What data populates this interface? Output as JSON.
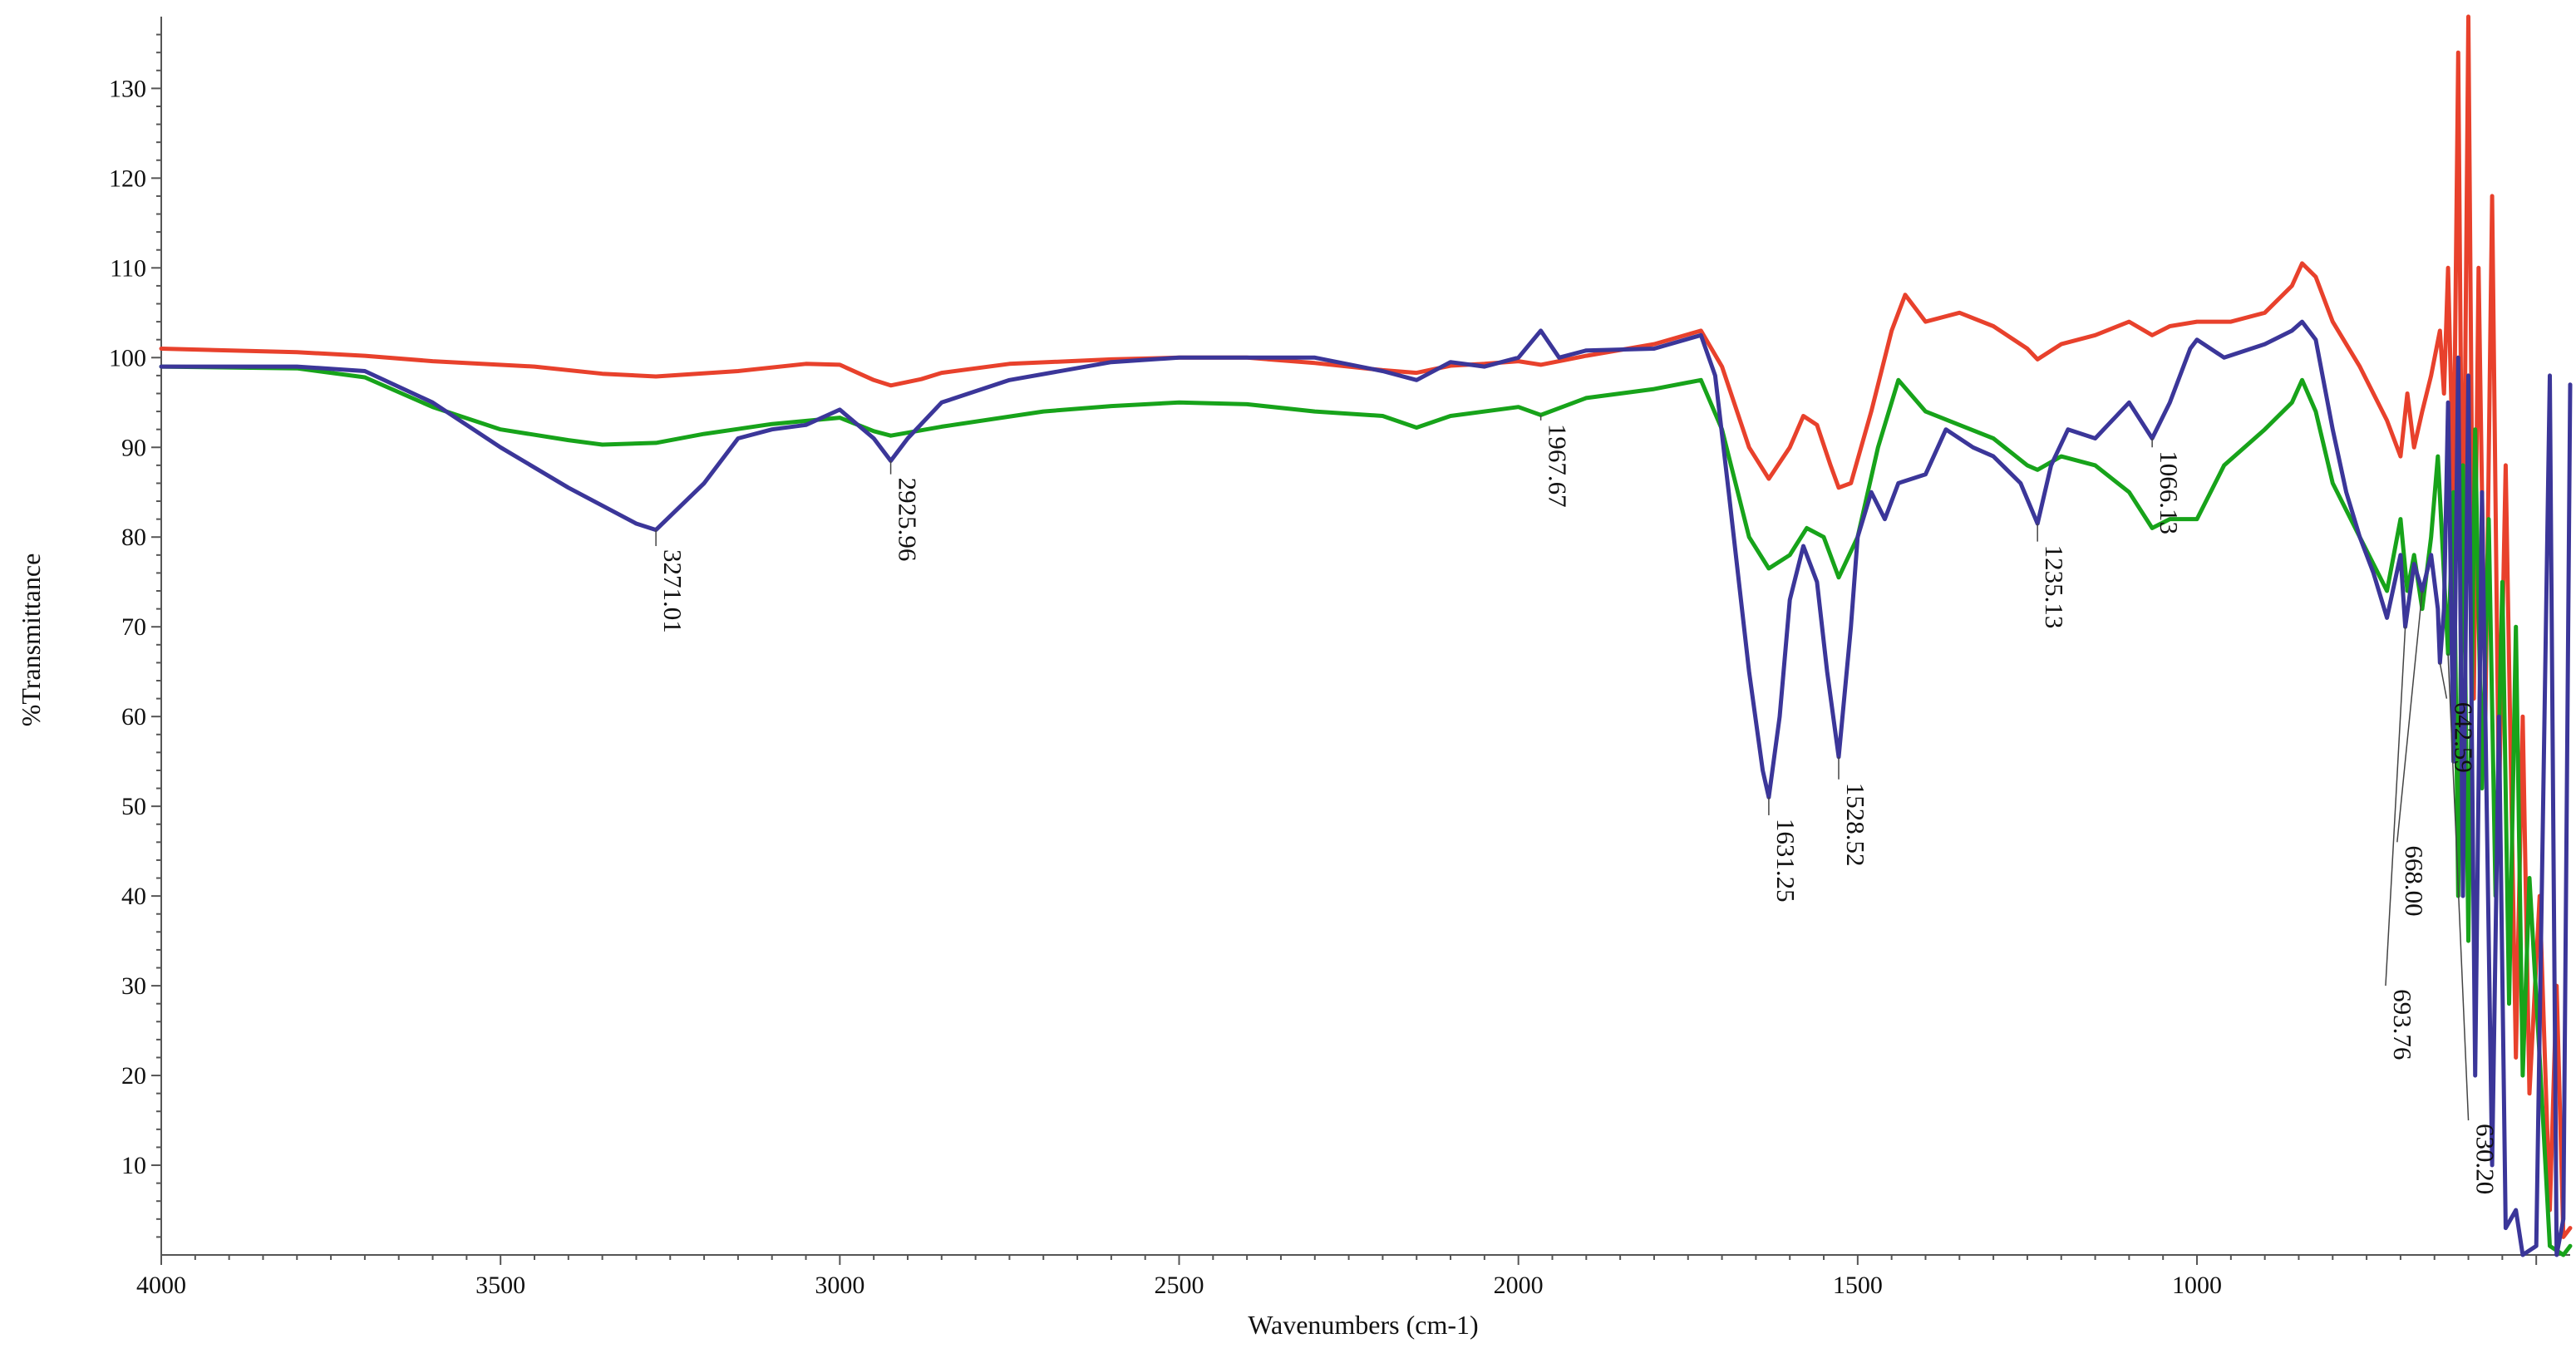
{
  "chart_data": {
    "type": "line",
    "title": "",
    "xlabel": "Wavenumbers (cm-1)",
    "ylabel": "%Transmittance",
    "xlim": [
      4000,
      450
    ],
    "ylim": [
      0,
      138
    ],
    "x_reversed": true,
    "grid": false,
    "legend": "none",
    "x_ticks": [
      4000,
      3500,
      3000,
      2500,
      2000,
      1500,
      1000
    ],
    "x_tick_labels": [
      "4000",
      "3500",
      "3000",
      "2500",
      "2000",
      "1500",
      "1000"
    ],
    "y_ticks": [
      10,
      20,
      30,
      40,
      50,
      60,
      70,
      80,
      90,
      100,
      110,
      120,
      130
    ],
    "y_tick_labels": [
      "10",
      "20",
      "30",
      "40",
      "50",
      "60",
      "70",
      "80",
      "90",
      "100",
      "110",
      "120",
      "130"
    ],
    "series": [
      {
        "color": "#e8412c",
        "points": [
          [
            4000,
            101
          ],
          [
            3800,
            100.6
          ],
          [
            3700,
            100.2
          ],
          [
            3600,
            99.6
          ],
          [
            3450,
            99
          ],
          [
            3350,
            98.2
          ],
          [
            3271,
            97.9
          ],
          [
            3150,
            98.5
          ],
          [
            3050,
            99.3
          ],
          [
            3000,
            99.2
          ],
          [
            2950,
            97.5
          ],
          [
            2925,
            96.9
          ],
          [
            2880,
            97.6
          ],
          [
            2850,
            98.3
          ],
          [
            2750,
            99.3
          ],
          [
            2600,
            99.8
          ],
          [
            2500,
            100
          ],
          [
            2400,
            100
          ],
          [
            2300,
            99.4
          ],
          [
            2200,
            98.6
          ],
          [
            2150,
            98.3
          ],
          [
            2100,
            99.1
          ],
          [
            2050,
            99.3
          ],
          [
            2000,
            99.6
          ],
          [
            1967,
            99.2
          ],
          [
            1900,
            100.2
          ],
          [
            1800,
            101.5
          ],
          [
            1731,
            103
          ],
          [
            1700,
            99
          ],
          [
            1660,
            90
          ],
          [
            1631,
            86.5
          ],
          [
            1600,
            90
          ],
          [
            1580,
            93.5
          ],
          [
            1560,
            92.5
          ],
          [
            1540,
            88
          ],
          [
            1528,
            85.5
          ],
          [
            1510,
            86
          ],
          [
            1480,
            94
          ],
          [
            1450,
            103
          ],
          [
            1430,
            107
          ],
          [
            1400,
            104
          ],
          [
            1350,
            105
          ],
          [
            1300,
            103.5
          ],
          [
            1250,
            101
          ],
          [
            1235,
            99.8
          ],
          [
            1200,
            101.5
          ],
          [
            1150,
            102.5
          ],
          [
            1100,
            104
          ],
          [
            1066,
            102.5
          ],
          [
            1040,
            103.5
          ],
          [
            1000,
            104
          ],
          [
            950,
            104
          ],
          [
            900,
            105
          ],
          [
            860,
            108
          ],
          [
            845,
            110.5
          ],
          [
            825,
            109
          ],
          [
            800,
            104
          ],
          [
            760,
            99
          ],
          [
            720,
            93
          ],
          [
            700,
            89
          ],
          [
            690,
            96
          ],
          [
            680,
            90
          ],
          [
            668,
            94
          ],
          [
            655,
            98
          ],
          [
            642,
            103
          ],
          [
            636,
            96
          ],
          [
            630,
            110
          ],
          [
            622,
            85
          ],
          [
            615,
            134
          ],
          [
            608,
            70
          ],
          [
            600,
            140
          ],
          [
            592,
            62
          ],
          [
            585,
            110
          ],
          [
            575,
            60
          ],
          [
            565,
            118
          ],
          [
            555,
            50
          ],
          [
            545,
            88
          ],
          [
            530,
            22
          ],
          [
            520,
            60
          ],
          [
            510,
            18
          ],
          [
            495,
            40
          ],
          [
            480,
            5
          ],
          [
            470,
            30
          ],
          [
            460,
            2
          ],
          [
            450,
            3
          ]
        ]
      },
      {
        "color": "#17a31a",
        "points": [
          [
            4000,
            99
          ],
          [
            3800,
            98.8
          ],
          [
            3700,
            97.8
          ],
          [
            3600,
            94.5
          ],
          [
            3500,
            92
          ],
          [
            3400,
            90.8
          ],
          [
            3350,
            90.3
          ],
          [
            3271,
            90.5
          ],
          [
            3200,
            91.5
          ],
          [
            3100,
            92.6
          ],
          [
            3000,
            93.3
          ],
          [
            2950,
            91.8
          ],
          [
            2925,
            91.3
          ],
          [
            2850,
            92.3
          ],
          [
            2700,
            94
          ],
          [
            2600,
            94.6
          ],
          [
            2500,
            95
          ],
          [
            2400,
            94.8
          ],
          [
            2300,
            94
          ],
          [
            2200,
            93.5
          ],
          [
            2150,
            92.2
          ],
          [
            2100,
            93.5
          ],
          [
            2000,
            94.5
          ],
          [
            1967,
            93.6
          ],
          [
            1900,
            95.5
          ],
          [
            1800,
            96.5
          ],
          [
            1731,
            97.5
          ],
          [
            1700,
            92
          ],
          [
            1660,
            80
          ],
          [
            1631,
            76.5
          ],
          [
            1600,
            78
          ],
          [
            1575,
            81
          ],
          [
            1550,
            80
          ],
          [
            1528,
            75.5
          ],
          [
            1500,
            80
          ],
          [
            1470,
            90
          ],
          [
            1440,
            97.5
          ],
          [
            1400,
            94
          ],
          [
            1350,
            92.5
          ],
          [
            1300,
            91
          ],
          [
            1250,
            88
          ],
          [
            1235,
            87.5
          ],
          [
            1200,
            89
          ],
          [
            1150,
            88
          ],
          [
            1100,
            85
          ],
          [
            1066,
            81
          ],
          [
            1040,
            82
          ],
          [
            1000,
            82
          ],
          [
            960,
            88
          ],
          [
            900,
            92
          ],
          [
            860,
            95
          ],
          [
            845,
            97.5
          ],
          [
            825,
            94
          ],
          [
            800,
            86
          ],
          [
            760,
            80
          ],
          [
            720,
            74
          ],
          [
            700,
            82
          ],
          [
            690,
            74
          ],
          [
            680,
            78
          ],
          [
            668,
            72
          ],
          [
            655,
            80
          ],
          [
            645,
            89
          ],
          [
            630,
            67
          ],
          [
            622,
            85
          ],
          [
            615,
            40
          ],
          [
            608,
            88
          ],
          [
            600,
            35
          ],
          [
            590,
            92
          ],
          [
            580,
            52
          ],
          [
            570,
            82
          ],
          [
            560,
            40
          ],
          [
            550,
            75
          ],
          [
            540,
            28
          ],
          [
            530,
            70
          ],
          [
            520,
            20
          ],
          [
            510,
            42
          ],
          [
            495,
            22
          ],
          [
            480,
            1
          ],
          [
            460,
            0
          ],
          [
            450,
            1
          ]
        ]
      },
      {
        "color": "#3b3699",
        "points": [
          [
            4000,
            99
          ],
          [
            3800,
            99
          ],
          [
            3700,
            98.5
          ],
          [
            3600,
            95
          ],
          [
            3500,
            90
          ],
          [
            3400,
            85.5
          ],
          [
            3300,
            81.5
          ],
          [
            3271,
            80.8
          ],
          [
            3200,
            86
          ],
          [
            3150,
            91
          ],
          [
            3100,
            92
          ],
          [
            3050,
            92.5
          ],
          [
            3000,
            94.2
          ],
          [
            2950,
            91
          ],
          [
            2925,
            88.5
          ],
          [
            2900,
            91
          ],
          [
            2850,
            95
          ],
          [
            2750,
            97.5
          ],
          [
            2600,
            99.5
          ],
          [
            2500,
            100
          ],
          [
            2400,
            100
          ],
          [
            2300,
            100
          ],
          [
            2200,
            98.5
          ],
          [
            2150,
            97.5
          ],
          [
            2100,
            99.5
          ],
          [
            2050,
            99
          ],
          [
            2000,
            100
          ],
          [
            1967,
            103
          ],
          [
            1940,
            100
          ],
          [
            1900,
            100.8
          ],
          [
            1800,
            101
          ],
          [
            1731,
            102.5
          ],
          [
            1710,
            98
          ],
          [
            1690,
            85
          ],
          [
            1660,
            65
          ],
          [
            1640,
            54
          ],
          [
            1631,
            51
          ],
          [
            1615,
            60
          ],
          [
            1600,
            73
          ],
          [
            1580,
            79
          ],
          [
            1560,
            75
          ],
          [
            1545,
            65
          ],
          [
            1528,
            55.5
          ],
          [
            1510,
            70
          ],
          [
            1500,
            80
          ],
          [
            1480,
            85
          ],
          [
            1460,
            82
          ],
          [
            1440,
            86
          ],
          [
            1400,
            87
          ],
          [
            1370,
            92
          ],
          [
            1330,
            90
          ],
          [
            1300,
            89
          ],
          [
            1260,
            86
          ],
          [
            1235,
            81.5
          ],
          [
            1215,
            88
          ],
          [
            1190,
            92
          ],
          [
            1150,
            91
          ],
          [
            1100,
            95
          ],
          [
            1066,
            91
          ],
          [
            1040,
            95
          ],
          [
            1010,
            101
          ],
          [
            1000,
            102
          ],
          [
            960,
            100
          ],
          [
            900,
            101.5
          ],
          [
            860,
            103
          ],
          [
            845,
            104
          ],
          [
            825,
            102
          ],
          [
            800,
            92
          ],
          [
            780,
            85
          ],
          [
            760,
            80
          ],
          [
            740,
            76
          ],
          [
            720,
            71
          ],
          [
            700,
            78
          ],
          [
            693,
            70
          ],
          [
            680,
            77
          ],
          [
            668,
            74
          ],
          [
            655,
            78
          ],
          [
            645,
            72
          ],
          [
            642,
            66
          ],
          [
            636,
            72
          ],
          [
            630,
            95
          ],
          [
            622,
            55
          ],
          [
            615,
            100
          ],
          [
            608,
            40
          ],
          [
            600,
            98
          ],
          [
            590,
            20
          ],
          [
            580,
            85
          ],
          [
            565,
            10
          ],
          [
            555,
            60
          ],
          [
            545,
            3
          ],
          [
            530,
            5
          ],
          [
            520,
            0
          ],
          [
            500,
            1
          ],
          [
            480,
            98
          ],
          [
            470,
            0
          ],
          [
            460,
            4
          ],
          [
            450,
            97
          ]
        ]
      }
    ],
    "annotations": [
      {
        "label": "3271.01",
        "x": 3271,
        "y_peak": 80.8,
        "y_text_top": 79
      },
      {
        "label": "2925.96",
        "x": 2925,
        "y_peak": 88.5,
        "y_text_top": 87
      },
      {
        "label": "1967.67",
        "x": 1967,
        "y_peak": 93.6,
        "y_text_top": 93
      },
      {
        "label": "1631.25",
        "x": 1631,
        "y_peak": 51,
        "y_text_top": 49
      },
      {
        "label": "1528.52",
        "x": 1528,
        "y_peak": 55.5,
        "y_text_top": 53
      },
      {
        "label": "1235.13",
        "x": 1235,
        "y_peak": 81.5,
        "y_text_top": 79.5
      },
      {
        "label": "1066.13",
        "x": 1066,
        "y_peak": 91,
        "y_text_top": 90
      },
      {
        "label": "693.76",
        "x": 693,
        "y_peak": 70,
        "y_text_top": 30,
        "x_text": 722
      },
      {
        "label": "668.00",
        "x": 668,
        "y_peak": 74,
        "y_text_top": 46,
        "x_text": 705
      },
      {
        "label": "642.59",
        "x": 642,
        "y_peak": 66,
        "y_text_top": 62,
        "x_text": 632
      },
      {
        "label": "630.20",
        "x": 630,
        "y_peak": 67,
        "y_text_top": 15,
        "x_text": 600
      }
    ]
  }
}
